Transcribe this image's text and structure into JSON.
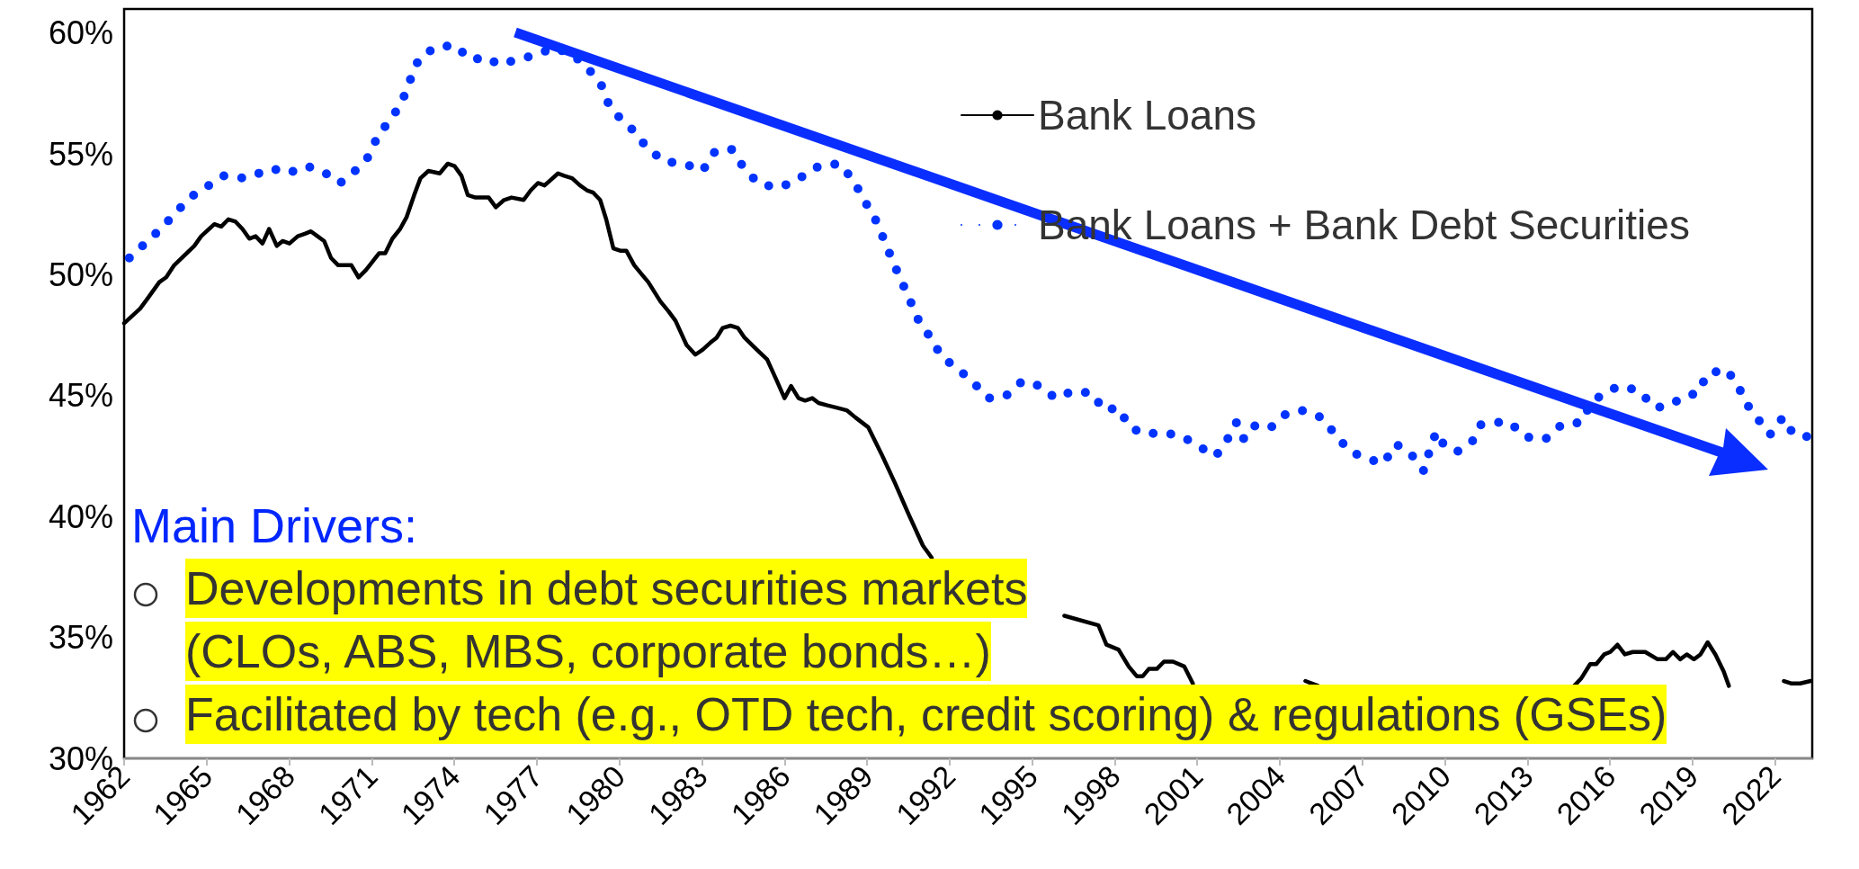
{
  "chart_data": {
    "type": "line",
    "legend": "top right",
    "grid": false,
    "marker": "none",
    "xlim": [
      1962,
      2023.35
    ],
    "xticks": [
      1962,
      1965,
      1968,
      1971,
      1974,
      1977,
      1980,
      1983,
      1986,
      1989,
      1992,
      1995,
      1998,
      2001,
      2004,
      2007,
      2010,
      2013,
      2016,
      2019,
      2022
    ],
    "ylim": [
      30,
      61
    ],
    "yticks": [
      {
        "value": 30,
        "label": "30%"
      },
      {
        "value": 35,
        "label": "35%"
      },
      {
        "value": 40,
        "label": "40%"
      },
      {
        "value": 45,
        "label": "45%"
      },
      {
        "value": 50,
        "label": "50%"
      },
      {
        "value": 55,
        "label": "55%"
      },
      {
        "value": 60,
        "label": "60%"
      }
    ],
    "series": [
      {
        "name": "Bank Loans",
        "color": "#000000",
        "line_style": "solid",
        "x": [
          1962.0,
          1962.58,
          1962.84,
          1963.28,
          1963.53,
          1963.82,
          1964.55,
          1964.8,
          1965.28,
          1965.53,
          1965.79,
          1966.05,
          1966.3,
          1966.55,
          1966.78,
          1967.03,
          1967.27,
          1967.55,
          1967.76,
          1968.01,
          1968.31,
          1968.57,
          1968.79,
          1969.03,
          1969.27,
          1969.52,
          1969.78,
          1970.26,
          1970.52,
          1970.79,
          1971.27,
          1971.49,
          1971.75,
          1972.03,
          1972.27,
          1972.54,
          1972.77,
          1973.06,
          1973.47,
          1973.76,
          1974.01,
          1974.26,
          1974.49,
          1974.77,
          1975.25,
          1975.51,
          1975.81,
          1976.08,
          1976.52,
          1976.78,
          1977.04,
          1977.28,
          1977.77,
          1977.99,
          1978.28,
          1978.57,
          1978.82,
          1979.05,
          1979.3,
          1979.52,
          1979.78,
          1980.03,
          1980.25,
          1980.54,
          1980.83,
          1981.05,
          1981.49,
          1981.78,
          1982.04,
          1982.44,
          1982.76,
          1983.02,
          1983.31,
          1983.53,
          1983.75,
          1984.04,
          1984.31,
          1984.55,
          1985.0,
          1985.37,
          1985.73,
          1986.0,
          1986.24,
          1986.51,
          1986.75,
          1987.01,
          1987.24,
          1987.56,
          1987.92,
          1988.26,
          1988.58,
          1989.04,
          1989.52,
          1990.01,
          1990.47,
          1991.03,
          1991.35,
          1991.9,
          1992.37,
          1994.56,
          1996.17,
          1997.41,
          1997.7,
          1998.14,
          1998.51,
          1998.8,
          1999.02,
          1999.24,
          1999.53,
          1999.79,
          2000.12,
          2000.53,
          2000.84,
          2003.0,
          2004.93,
          2005.39,
          2010.0,
          2014.7,
          2014.95,
          2015.28,
          2015.5,
          2015.79,
          2016.01,
          2016.27,
          2016.54,
          2016.83,
          2017.28,
          2017.73,
          2018.03,
          2018.29,
          2018.55,
          2018.79,
          2019.05,
          2019.29,
          2019.55,
          2019.83,
          2020.13,
          2020.32,
          2021.3,
          2022.32,
          2022.58,
          2022.91,
          2023.29
        ],
        "values": [
          48.0,
          48.6,
          49.0,
          49.7,
          49.9,
          50.4,
          51.2,
          51.6,
          52.1,
          52.0,
          52.3,
          52.2,
          51.9,
          51.5,
          51.6,
          51.3,
          51.9,
          51.2,
          51.4,
          51.3,
          51.6,
          51.7,
          51.8,
          51.6,
          51.4,
          50.7,
          50.4,
          50.4,
          49.9,
          50.2,
          50.9,
          50.9,
          51.5,
          51.9,
          52.4,
          53.3,
          54.0,
          54.3,
          54.2,
          54.6,
          54.5,
          54.1,
          53.3,
          53.2,
          53.2,
          52.8,
          53.1,
          53.2,
          53.1,
          53.5,
          53.8,
          53.7,
          54.2,
          54.1,
          54.0,
          53.7,
          53.5,
          53.4,
          53.1,
          52.3,
          51.1,
          51.0,
          51.0,
          50.4,
          50.0,
          49.7,
          48.9,
          48.5,
          48.1,
          47.1,
          46.7,
          46.9,
          47.2,
          47.4,
          47.8,
          47.9,
          47.8,
          47.4,
          46.9,
          46.5,
          45.6,
          44.9,
          45.4,
          44.9,
          44.8,
          44.9,
          44.7,
          44.6,
          44.5,
          44.4,
          44.1,
          43.7,
          42.6,
          41.4,
          40.2,
          38.8,
          38.3,
          null,
          null,
          null,
          35.9,
          35.5,
          34.7,
          34.5,
          33.8,
          33.4,
          33.4,
          33.7,
          33.7,
          34.0,
          34.0,
          33.8,
          33.1,
          null,
          33.2,
          33.0,
          null,
          33.0,
          33.3,
          33.9,
          33.9,
          34.3,
          34.4,
          34.7,
          34.3,
          34.4,
          34.4,
          34.1,
          34.1,
          34.4,
          34.1,
          34.3,
          34.1,
          34.3,
          34.8,
          34.3,
          33.6,
          33.0,
          null,
          33.2,
          33.1,
          33.1,
          33.2
        ]
      },
      {
        "name": "Bank Loans + Bank Debt Securities",
        "color": "#0033ff",
        "line_style": "dotted",
        "x": [
          1962.19,
          1963.33,
          1964.39,
          1965.63,
          1966.39,
          1967.39,
          1967.93,
          1968.65,
          1969.33,
          1969.85,
          1970.39,
          1970.89,
          1971.24,
          1971.74,
          1972.11,
          1972.41,
          1972.7,
          1973.27,
          1974.0,
          1974.61,
          1975.2,
          1975.6,
          1976.29,
          1976.96,
          1977.62,
          1978.32,
          1978.89,
          1979.37,
          1979.63,
          1980.01,
          1980.48,
          1980.98,
          1981.6,
          1982.36,
          1983.02,
          1983.47,
          1984.07,
          1984.48,
          1985.03,
          1985.73,
          1986.23,
          1986.84,
          1987.25,
          1988.0,
          1988.51,
          1988.89,
          1989.3,
          1989.6,
          1989.92,
          1990.23,
          1990.54,
          1990.88,
          1991.31,
          1991.72,
          1992.32,
          1992.9,
          1993.43,
          1994.05,
          1994.64,
          1995.29,
          1995.84,
          1996.49,
          1997.19,
          1997.6,
          1998.14,
          1998.54,
          1999.12,
          1999.73,
          2000.48,
          2001.06,
          2001.67,
          2002.05,
          2002.43,
          2002.7,
          2003.13,
          2003.69,
          2004.15,
          2004.78,
          2005.51,
          2006.02,
          2006.54,
          2007.16,
          2007.77,
          2008.22,
          2008.76,
          2009.23,
          2009.41,
          2009.68,
          2010.0,
          2010.46,
          2010.99,
          2011.31,
          2011.79,
          2012.36,
          2012.92,
          2013.65,
          2014.24,
          2014.97,
          2015.3,
          2015.9,
          2016.39,
          2017.06,
          2017.63,
          2018.16,
          2018.74,
          2019.2,
          2019.53,
          2020.21,
          2020.62,
          2020.94,
          2021.4,
          2021.82,
          2022.28,
          2022.67,
          2023.23
        ],
        "values": [
          50.7,
          51.9,
          53.2,
          54.1,
          54.0,
          54.4,
          54.2,
          54.5,
          54.2,
          53.8,
          54.3,
          54.9,
          55.8,
          56.5,
          57.2,
          58.1,
          58.9,
          59.4,
          59.5,
          58.9,
          59.0,
          58.7,
          58.9,
          59.1,
          59.4,
          59.1,
          58.5,
          57.8,
          57.0,
          56.5,
          56.0,
          55.3,
          54.7,
          54.6,
          54.3,
          55.1,
          55.2,
          54.5,
          53.8,
          53.6,
          53.8,
          54.2,
          54.5,
          54.6,
          53.9,
          53.1,
          52.3,
          51.5,
          50.6,
          49.8,
          49.0,
          48.1,
          47.4,
          46.6,
          46.1,
          45.5,
          44.9,
          45.0,
          45.6,
          45.4,
          44.9,
          45.2,
          45.1,
          44.4,
          44.5,
          43.7,
          43.4,
          43.5,
          43.3,
          42.9,
          42.5,
          43.1,
          43.9,
          43.2,
          43.8,
          43.7,
          44.2,
          44.4,
          44.1,
          43.4,
          42.7,
          42.4,
          42.2,
          43.0,
          42.6,
          41.9,
          42.6,
          43.5,
          42.9,
          42.7,
          43.1,
          43.8,
          43.9,
          43.9,
          43.3,
          43.2,
          43.8,
          43.9,
          44.7,
          45.2,
          45.4,
          45.2,
          44.5,
          44.6,
          45.0,
          45.1,
          45.9,
          46.1,
          45.5,
          44.7,
          44.0,
          43.4,
          44.1,
          43.4,
          43.3
        ]
      }
    ],
    "annotations": [
      "Main Drivers:",
      "Developments in debt securities markets (CLOs, ABS, MBS, corporate bonds…)",
      "Facilitated by tech (e.g., OTD tech, credit scoring) & regulations (GSEs)"
    ]
  }
}
